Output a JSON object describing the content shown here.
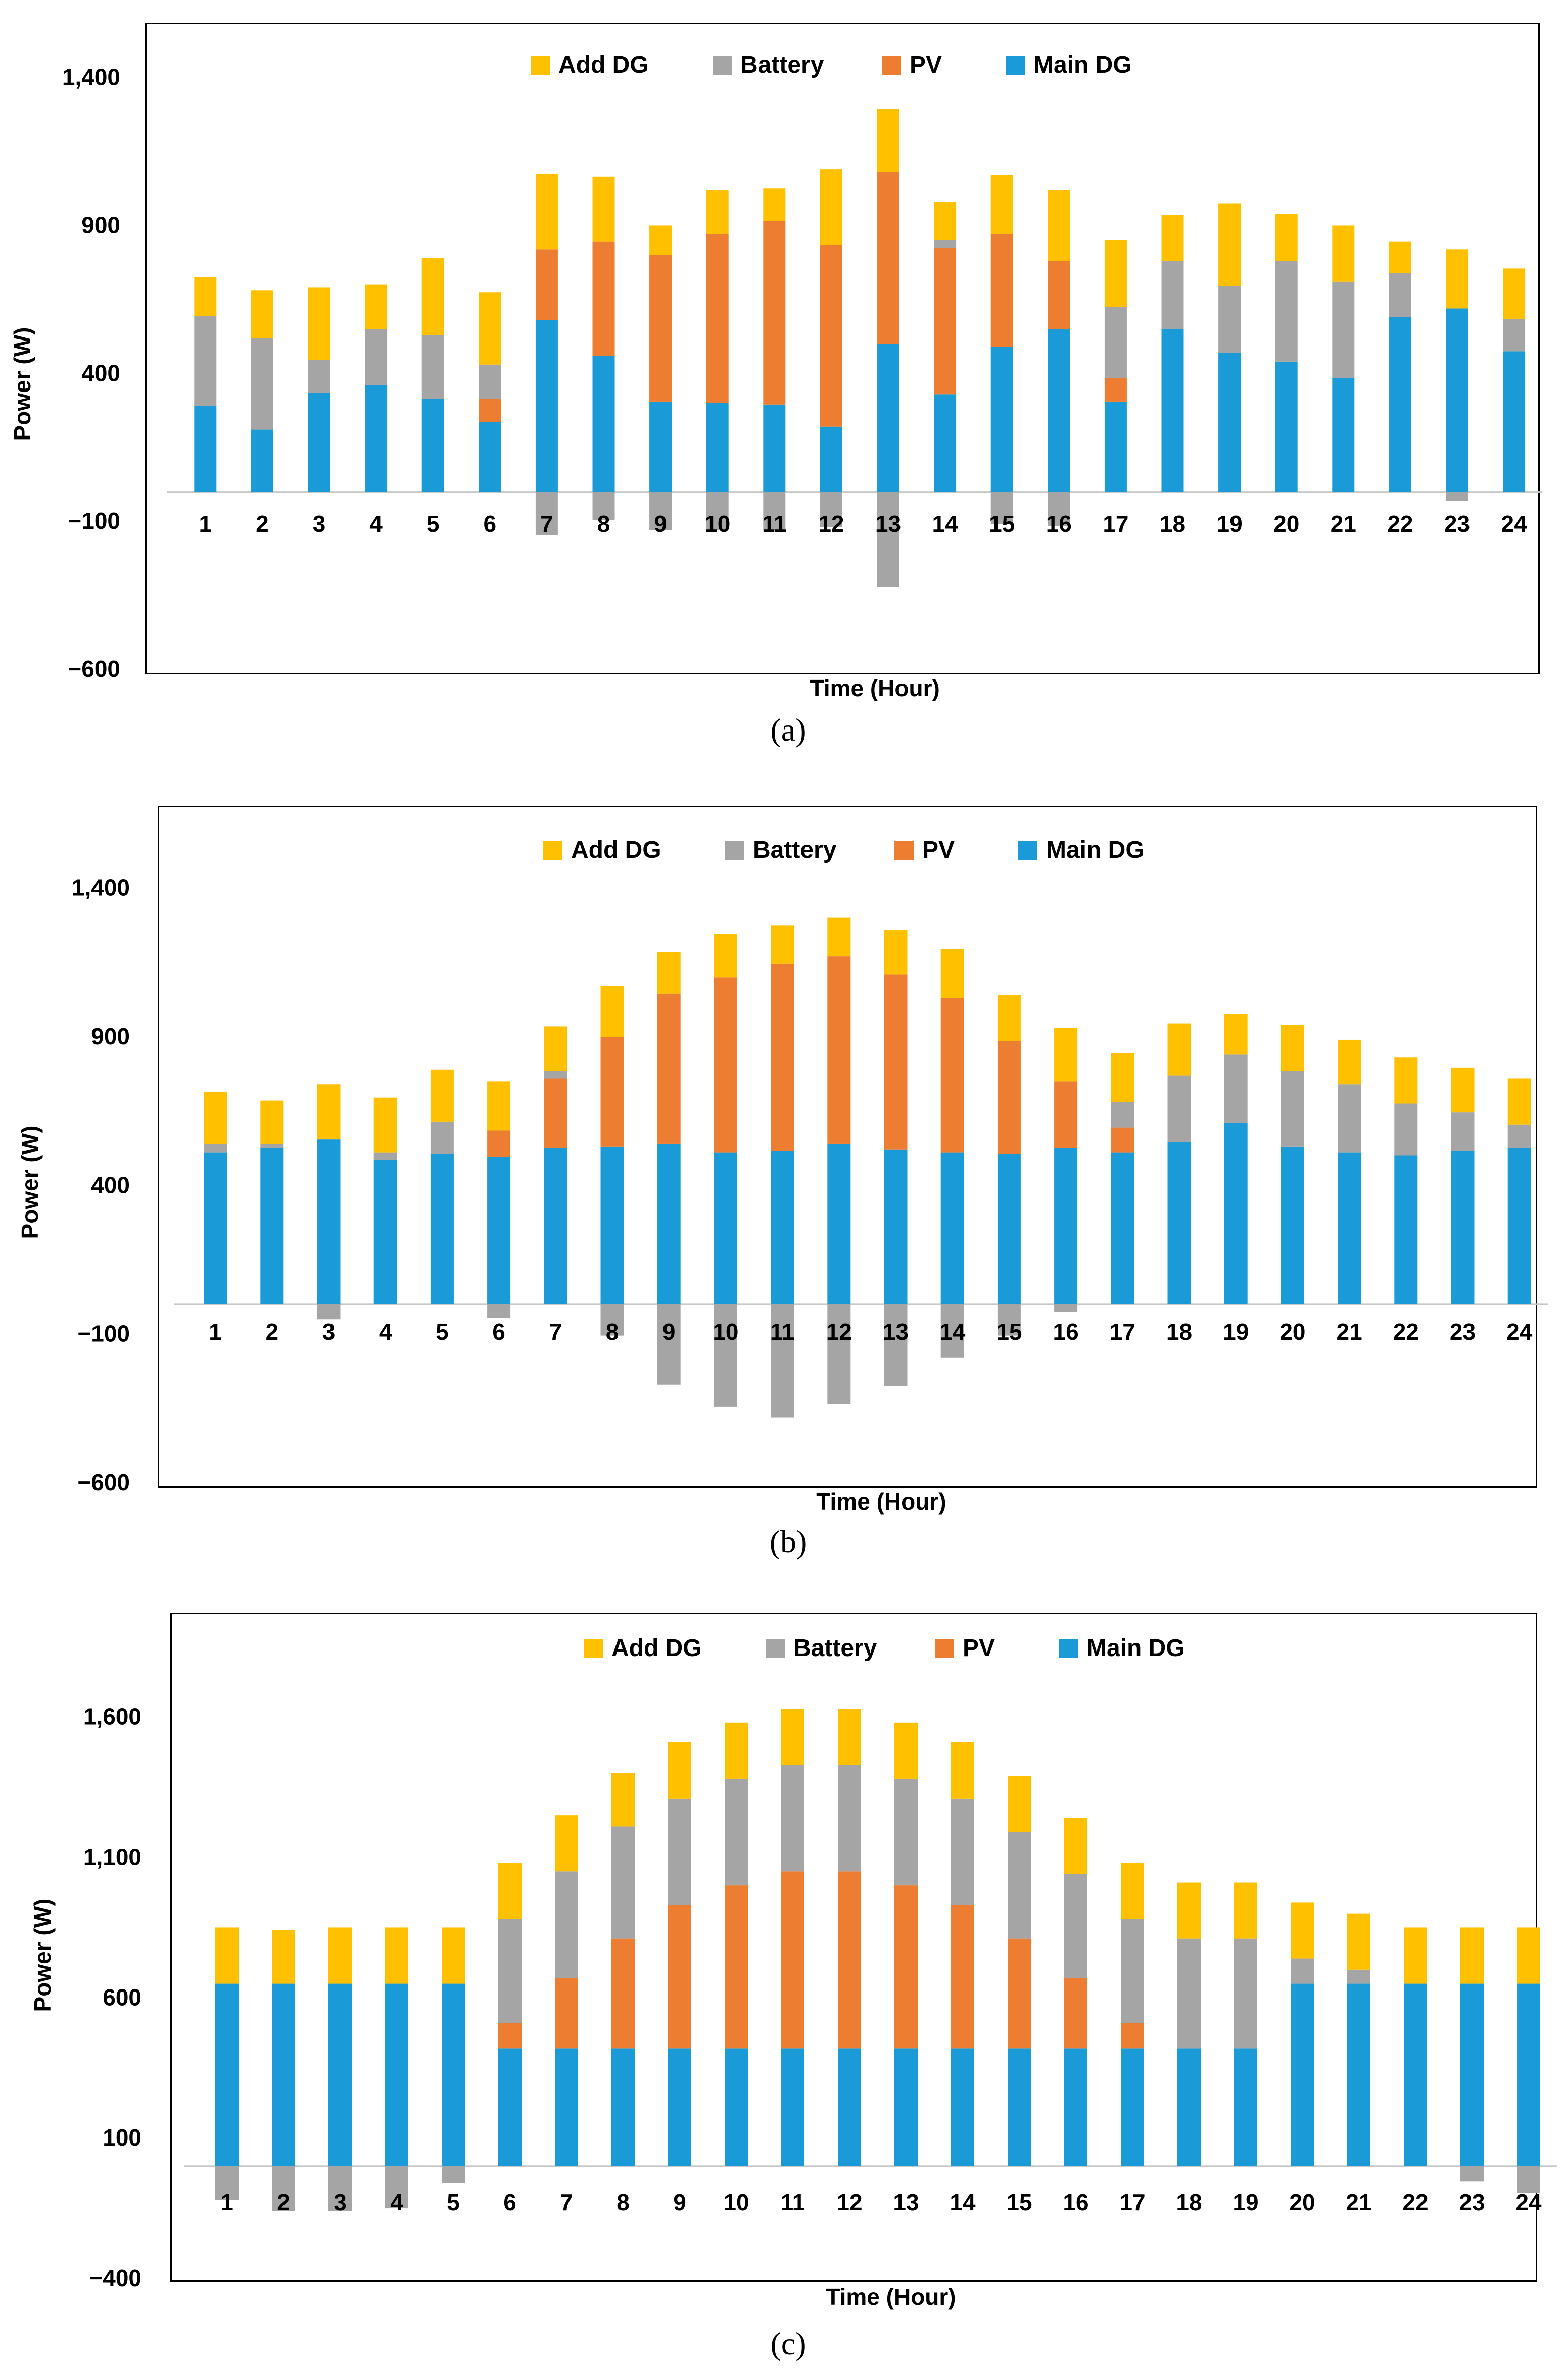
{
  "colors": {
    "Add DG": "#FFC000",
    "Battery": "#A5A5A5",
    "PV": "#ED7D31",
    "Main DG": "#1A9BD7"
  },
  "chart_data": [
    {
      "type": "bar",
      "caption": "(a)",
      "title": "",
      "xlabel": "Time (Hour)",
      "ylabel": "Power (W)",
      "ylim": [
        -600,
        1500
      ],
      "yticks": [
        -600,
        -100,
        400,
        900,
        1400
      ],
      "ytick_labels": [
        "−600",
        "−100",
        "400",
        "900",
        "1,400"
      ],
      "categories": [
        "1",
        "2",
        "3",
        "4",
        "5",
        "6",
        "7",
        "8",
        "9",
        "10",
        "11",
        "12",
        "13",
        "14",
        "15",
        "16",
        "17",
        "18",
        "19",
        "20",
        "21",
        "22",
        "23",
        "24"
      ],
      "legend": [
        "Add DG",
        "Battery",
        "PV",
        "Main DG"
      ],
      "legend_position": "top-center",
      "series": [
        {
          "name": "Main DG",
          "values": [
            290,
            210,
            335,
            360,
            315,
            235,
            580,
            460,
            305,
            300,
            295,
            220,
            500,
            330,
            490,
            550,
            305,
            550,
            470,
            440,
            385,
            590,
            620,
            475
          ]
        },
        {
          "name": "PV",
          "values": [
            0,
            0,
            0,
            0,
            0,
            80,
            240,
            385,
            495,
            570,
            620,
            615,
            580,
            495,
            380,
            230,
            80,
            0,
            0,
            0,
            0,
            0,
            0,
            0
          ]
        },
        {
          "name": "Battery",
          "values": [
            305,
            310,
            110,
            190,
            215,
            115,
            -145,
            -95,
            -130,
            -130,
            -130,
            -120,
            -320,
            25,
            -110,
            -115,
            240,
            230,
            225,
            340,
            325,
            150,
            -30,
            110
          ]
        },
        {
          "name": "Add DG",
          "values": [
            130,
            160,
            245,
            150,
            260,
            245,
            255,
            220,
            100,
            150,
            110,
            255,
            215,
            130,
            200,
            240,
            225,
            155,
            280,
            160,
            190,
            105,
            200,
            170
          ]
        }
      ]
    },
    {
      "type": "bar",
      "caption": "(b)",
      "title": "",
      "xlabel": "Time (Hour)",
      "ylabel": "Power (W)",
      "ylim": [
        -600,
        1600
      ],
      "yticks": [
        -600,
        -100,
        400,
        900,
        1400
      ],
      "ytick_labels": [
        "−600",
        "−100",
        "400",
        "900",
        "1,400"
      ],
      "categories": [
        "1",
        "2",
        "3",
        "4",
        "5",
        "6",
        "7",
        "8",
        "9",
        "10",
        "11",
        "12",
        "13",
        "14",
        "15",
        "16",
        "17",
        "18",
        "19",
        "20",
        "21",
        "22",
        "23",
        "24"
      ],
      "legend": [
        "Add DG",
        "Battery",
        "PV",
        "Main DG"
      ],
      "legend_position": "top-center",
      "series": [
        {
          "name": "Main DG",
          "values": [
            510,
            525,
            555,
            485,
            505,
            495,
            525,
            530,
            540,
            510,
            515,
            540,
            520,
            510,
            505,
            525,
            510,
            545,
            610,
            530,
            510,
            500,
            515,
            525
          ]
        },
        {
          "name": "PV",
          "values": [
            0,
            0,
            0,
            0,
            0,
            90,
            235,
            370,
            505,
            590,
            630,
            630,
            590,
            520,
            380,
            225,
            85,
            0,
            0,
            0,
            0,
            0,
            0,
            0
          ]
        },
        {
          "name": "Battery",
          "values": [
            30,
            15,
            -50,
            25,
            110,
            -45,
            25,
            -105,
            -270,
            -345,
            -380,
            -335,
            -275,
            -180,
            -105,
            -25,
            85,
            225,
            230,
            255,
            230,
            175,
            130,
            80
          ]
        },
        {
          "name": "Add DG",
          "values": [
            175,
            145,
            185,
            185,
            175,
            165,
            150,
            170,
            140,
            145,
            130,
            130,
            150,
            165,
            155,
            180,
            165,
            175,
            135,
            155,
            150,
            155,
            150,
            155
          ]
        }
      ]
    },
    {
      "type": "bar",
      "caption": "(c)",
      "title": "",
      "xlabel": "Time (Hour)",
      "ylabel": "Power (W)",
      "ylim": [
        -400,
        1900
      ],
      "yticks": [
        -400,
        100,
        600,
        1100,
        1600
      ],
      "ytick_labels": [
        "−400",
        "100",
        "600",
        "1,100",
        "1,600"
      ],
      "categories": [
        "1",
        "2",
        "3",
        "4",
        "5",
        "6",
        "7",
        "8",
        "9",
        "10",
        "11",
        "12",
        "13",
        "14",
        "15",
        "16",
        "17",
        "18",
        "19",
        "20",
        "21",
        "22",
        "23",
        "24"
      ],
      "legend": [
        "Add DG",
        "Battery",
        "PV",
        "Main DG"
      ],
      "legend_position": "top-center",
      "series": [
        {
          "name": "Main DG",
          "values": [
            650,
            650,
            650,
            650,
            650,
            420,
            420,
            420,
            420,
            420,
            420,
            420,
            420,
            420,
            420,
            420,
            420,
            420,
            420,
            650,
            650,
            650,
            650,
            650
          ]
        },
        {
          "name": "PV",
          "values": [
            0,
            0,
            0,
            0,
            0,
            90,
            250,
            390,
            510,
            580,
            630,
            630,
            580,
            510,
            390,
            250,
            90,
            0,
            0,
            0,
            0,
            0,
            0,
            0
          ]
        },
        {
          "name": "Battery",
          "values": [
            -120,
            -160,
            -160,
            -150,
            -60,
            370,
            380,
            400,
            380,
            380,
            380,
            380,
            380,
            380,
            380,
            370,
            370,
            390,
            390,
            90,
            50,
            0,
            -55,
            -95
          ]
        },
        {
          "name": "Add DG",
          "values": [
            200,
            190,
            200,
            200,
            200,
            200,
            200,
            190,
            200,
            200,
            200,
            200,
            200,
            200,
            200,
            200,
            200,
            200,
            200,
            200,
            200,
            200,
            200,
            200
          ]
        }
      ]
    }
  ]
}
